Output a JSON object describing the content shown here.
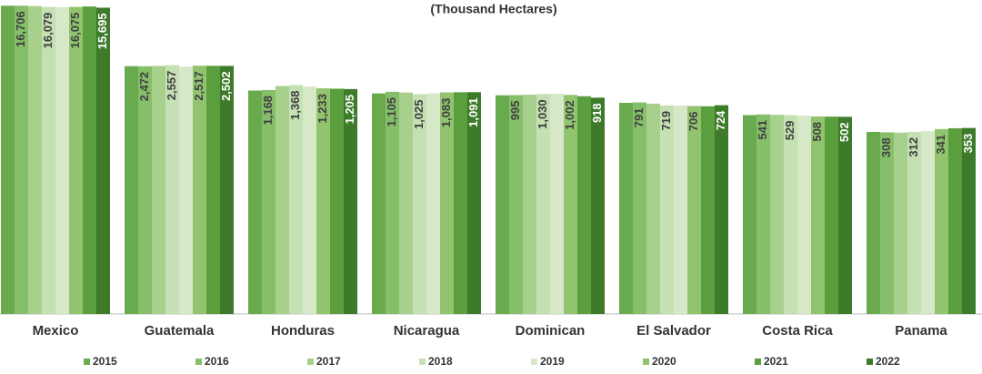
{
  "chart_data": {
    "type": "bar",
    "title": "(Thousand Hectares)",
    "log_scale": true,
    "ylim": [
      1,
      20000
    ],
    "categories": [
      "Mexico",
      "Guatemala",
      "Honduras",
      "Nicaragua",
      "Dominican",
      "El Salvador",
      "Costa Rica",
      "Panama"
    ],
    "series": [
      {
        "name": "2015",
        "color": "#6aaa4e",
        "values": [
          16700,
          2480,
          1150,
          1050,
          990,
          780,
          530,
          312
        ]
      },
      {
        "name": "2016",
        "color": "#86bf6a",
        "values": [
          16706,
          2472,
          1168,
          1105,
          995,
          791,
          541,
          308
        ],
        "value_labels": [
          "16,706",
          "2,472",
          "1,168",
          "1,105",
          "995",
          "791",
          "541",
          "308"
        ]
      },
      {
        "name": "2017",
        "color": "#a8d08d",
        "values": [
          16500,
          2500,
          1330,
          1080,
          1010,
          760,
          535,
          305
        ]
      },
      {
        "name": "2018",
        "color": "#c5e0b3",
        "values": [
          16079,
          2557,
          1368,
          1025,
          1030,
          719,
          529,
          312
        ],
        "value_labels": [
          "16,079",
          "2,557",
          "1,368",
          "1,025",
          "1,030",
          "719",
          "529",
          "312"
        ]
      },
      {
        "name": "2019",
        "color": "#d6e8c8",
        "values": [
          15900,
          2450,
          1300,
          1050,
          1040,
          715,
          520,
          320
        ]
      },
      {
        "name": "2020",
        "color": "#92c46f",
        "values": [
          16075,
          2517,
          1233,
          1083,
          1002,
          706,
          508,
          341
        ],
        "value_labels": [
          "16,075",
          "2,517",
          "1,233",
          "1,083",
          "1,002",
          "706",
          "508",
          "341"
        ]
      },
      {
        "name": "2021",
        "color": "#5a9e3e",
        "values": [
          16300,
          2510,
          1220,
          1090,
          960,
          700,
          505,
          350
        ]
      },
      {
        "name": "2022",
        "color": "#3d7a2a",
        "values": [
          15695,
          2502,
          1205,
          1091,
          918,
          724,
          502,
          353
        ],
        "value_labels": [
          "15,695",
          "2,502",
          "1,205",
          "1,091",
          "918",
          "724",
          "502",
          "353"
        ]
      }
    ]
  }
}
